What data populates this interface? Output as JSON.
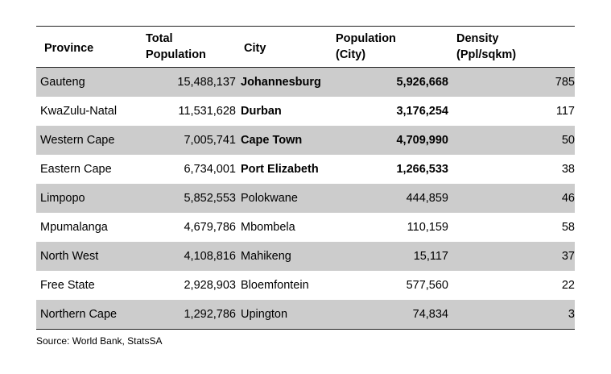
{
  "table": {
    "headers": {
      "province": "Province",
      "total_line1": "Total",
      "total_line2": "Population",
      "city": "City",
      "popcity_line1": "Population",
      "popcity_line2": "(City)",
      "density_line1": "Density",
      "density_line2": "(Ppl/sqkm)"
    },
    "rows": [
      {
        "province": "Gauteng",
        "total": "15,488,137",
        "city": "Johannesburg",
        "pop_city": "5,926,668",
        "density": "785",
        "city_bold": true
      },
      {
        "province": "KwaZulu-Natal",
        "total": "11,531,628",
        "city": "Durban",
        "pop_city": "3,176,254",
        "density": "117",
        "city_bold": true
      },
      {
        "province": "Western Cape",
        "total": "7,005,741",
        "city": "Cape Town",
        "pop_city": "4,709,990",
        "density": "50",
        "city_bold": true
      },
      {
        "province": "Eastern Cape",
        "total": "6,734,001",
        "city": "Port Elizabeth",
        "pop_city": "1,266,533",
        "density": "38",
        "city_bold": true
      },
      {
        "province": "Limpopo",
        "total": "5,852,553",
        "city": "Polokwane",
        "pop_city": "444,859",
        "density": "46",
        "city_bold": false
      },
      {
        "province": "Mpumalanga",
        "total": "4,679,786",
        "city": "Mbombela",
        "pop_city": "110,159",
        "density": "58",
        "city_bold": false
      },
      {
        "province": "North West",
        "total": "4,108,816",
        "city": "Mahikeng",
        "pop_city": "15,117",
        "density": "37",
        "city_bold": false
      },
      {
        "province": "Free State",
        "total": "2,928,903",
        "city": "Bloemfontein",
        "pop_city": "577,560",
        "density": "22",
        "city_bold": false
      },
      {
        "province": "Northern Cape",
        "total": "1,292,786",
        "city": "Upington",
        "pop_city": "74,834",
        "density": "3",
        "city_bold": false
      }
    ],
    "shade_color": "#cccccc"
  },
  "source": "Source: World Bank, StatsSA"
}
